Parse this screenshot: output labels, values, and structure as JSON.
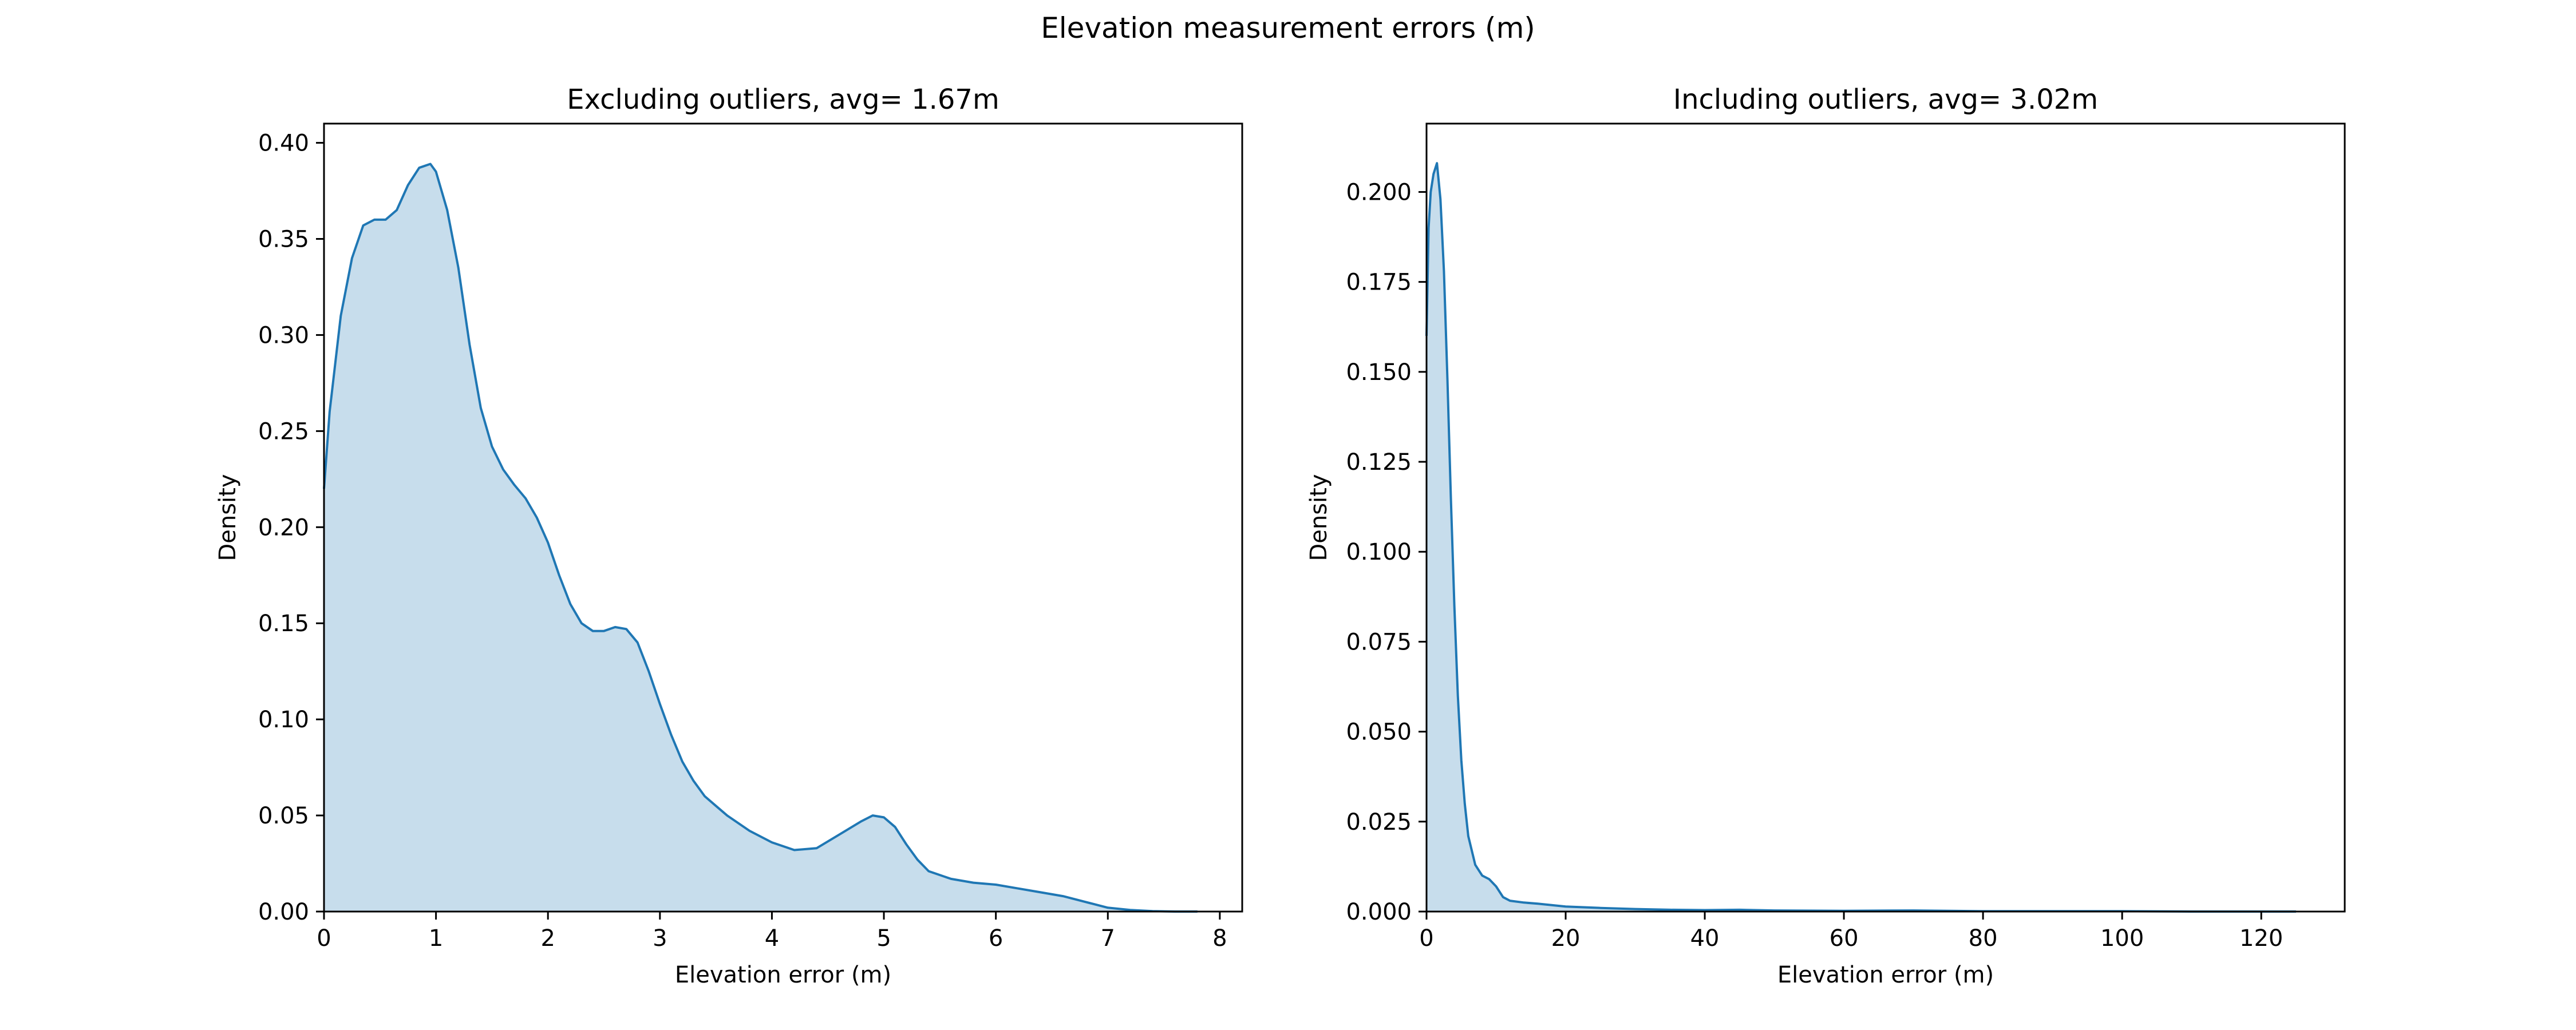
{
  "figure": {
    "suptitle": "Elevation measurement errors (m)"
  },
  "colors": {
    "line": "#1f77b4",
    "fill": "#1f77b4",
    "fill_opacity": 0.25,
    "axis": "#000000"
  },
  "chart_data": [
    {
      "type": "area",
      "title": "Excluding outliers, avg= 1.67m",
      "xlabel": "Elevation error (m)",
      "ylabel": "Density",
      "xlim": [
        0,
        8.2
      ],
      "ylim": [
        0,
        0.41
      ],
      "xticks": [
        0,
        1,
        2,
        3,
        4,
        5,
        6,
        7,
        8
      ],
      "xtick_labels": [
        "0",
        "1",
        "2",
        "3",
        "4",
        "5",
        "6",
        "7",
        "8"
      ],
      "yticks": [
        0,
        0.05,
        0.1,
        0.15,
        0.2,
        0.25,
        0.3,
        0.35,
        0.4
      ],
      "ytick_labels": [
        "0.00",
        "0.05",
        "0.10",
        "0.15",
        "0.20",
        "0.25",
        "0.30",
        "0.35",
        "0.40"
      ],
      "grid": false,
      "legend": "none",
      "x": [
        0,
        0.05,
        0.15,
        0.25,
        0.35,
        0.45,
        0.55,
        0.65,
        0.75,
        0.85,
        0.95,
        1.0,
        1.1,
        1.2,
        1.3,
        1.4,
        1.5,
        1.6,
        1.7,
        1.8,
        1.9,
        2.0,
        2.1,
        2.2,
        2.3,
        2.4,
        2.5,
        2.6,
        2.7,
        2.8,
        2.9,
        3.0,
        3.1,
        3.2,
        3.3,
        3.4,
        3.5,
        3.6,
        3.8,
        4.0,
        4.2,
        4.4,
        4.6,
        4.8,
        4.9,
        5.0,
        5.1,
        5.2,
        5.3,
        5.4,
        5.6,
        5.8,
        6.0,
        6.2,
        6.4,
        6.6,
        6.8,
        7.0,
        7.2,
        7.4,
        7.6,
        7.8
      ],
      "y": [
        0.22,
        0.26,
        0.31,
        0.34,
        0.357,
        0.36,
        0.36,
        0.365,
        0.378,
        0.387,
        0.389,
        0.385,
        0.365,
        0.335,
        0.295,
        0.262,
        0.242,
        0.23,
        0.222,
        0.215,
        0.205,
        0.192,
        0.175,
        0.16,
        0.15,
        0.146,
        0.146,
        0.148,
        0.147,
        0.14,
        0.125,
        0.108,
        0.092,
        0.078,
        0.068,
        0.06,
        0.055,
        0.05,
        0.042,
        0.036,
        0.032,
        0.033,
        0.04,
        0.047,
        0.05,
        0.049,
        0.044,
        0.035,
        0.027,
        0.021,
        0.017,
        0.015,
        0.014,
        0.012,
        0.01,
        0.008,
        0.005,
        0.002,
        0.0008,
        0.0002,
        0.0,
        0.0
      ]
    },
    {
      "type": "area",
      "title": "Including outliers, avg= 3.02m",
      "xlabel": "Elevation error (m)",
      "ylabel": "Density",
      "xlim": [
        0,
        132
      ],
      "ylim": [
        0,
        0.219
      ],
      "xticks": [
        0,
        20,
        40,
        60,
        80,
        100,
        120
      ],
      "xtick_labels": [
        "0",
        "20",
        "40",
        "60",
        "80",
        "100",
        "120"
      ],
      "yticks": [
        0,
        0.025,
        0.05,
        0.075,
        0.1,
        0.125,
        0.15,
        0.175,
        0.2
      ],
      "ytick_labels": [
        "0.000",
        "0.025",
        "0.050",
        "0.075",
        "0.100",
        "0.125",
        "0.150",
        "0.175",
        "0.200"
      ],
      "grid": false,
      "legend": "none",
      "x": [
        0,
        0.3,
        0.6,
        1.0,
        1.5,
        2.0,
        2.5,
        3.0,
        3.5,
        4.0,
        4.5,
        5.0,
        5.5,
        6.0,
        7.0,
        8.0,
        9.0,
        10.0,
        11.0,
        12.0,
        14.0,
        16.0,
        18.0,
        20.0,
        25.0,
        30.0,
        35.0,
        40.0,
        45.0,
        50.0,
        60.0,
        70.0,
        80.0,
        90.0,
        100.0,
        110.0,
        120.0,
        125.0
      ],
      "y": [
        0.16,
        0.19,
        0.2,
        0.205,
        0.208,
        0.198,
        0.178,
        0.148,
        0.115,
        0.085,
        0.06,
        0.042,
        0.03,
        0.021,
        0.013,
        0.01,
        0.009,
        0.007,
        0.004,
        0.003,
        0.0025,
        0.0022,
        0.0018,
        0.0014,
        0.001,
        0.0007,
        0.0005,
        0.0004,
        0.0005,
        0.0003,
        0.0002,
        0.0003,
        0.0001,
        0.0001,
        0.0001,
        0.0,
        0.0,
        0.0
      ]
    }
  ]
}
